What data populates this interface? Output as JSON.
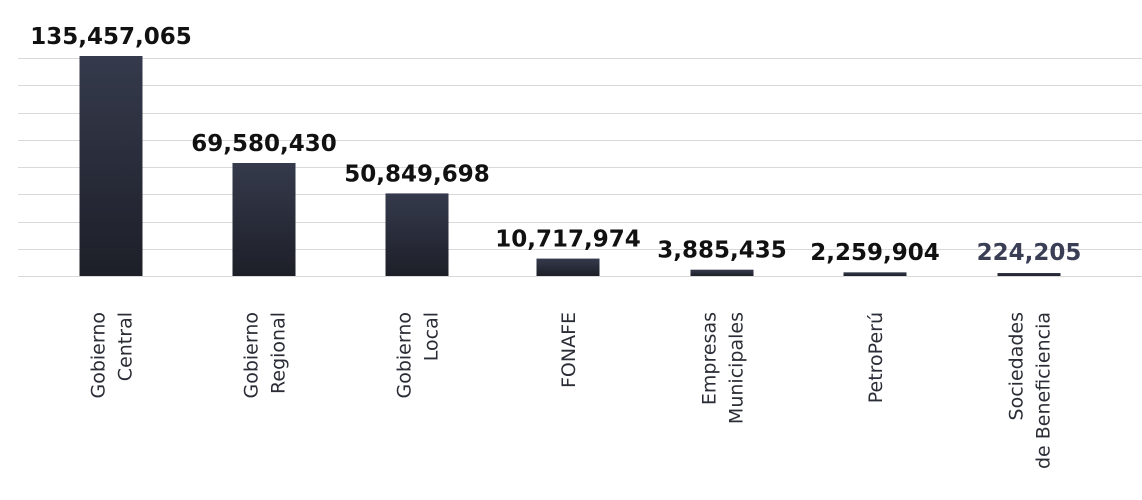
{
  "chart_data": {
    "type": "bar",
    "categories": [
      [
        "Gobierno",
        "Central"
      ],
      [
        "Gobierno",
        "Regional"
      ],
      [
        "Gobierno",
        "Local"
      ],
      [
        "FONAFE"
      ],
      [
        "Empresas",
        "Municipales"
      ],
      [
        "PetroPerú"
      ],
      [
        "Sociedades",
        "de Beneficiencia"
      ]
    ],
    "values": [
      135457065,
      69580430,
      50849698,
      10717974,
      3885435,
      2259904,
      224205
    ],
    "value_labels": [
      "135,457,065",
      "69,580,430",
      "50,849,698",
      "10,717,974",
      "3,885,435",
      "2,259,904",
      "224,205"
    ],
    "ylim": [
      0,
      135457065
    ],
    "grid": true,
    "colors": {
      "bar_top": "#353a4c",
      "bar_bottom": "#1d1f28",
      "label": "#111111",
      "last_label": "#3a3f55"
    }
  }
}
